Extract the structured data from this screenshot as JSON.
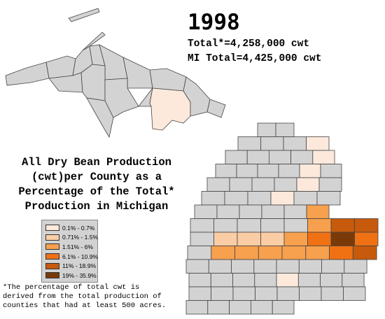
{
  "year": "1998",
  "totals": {
    "line1": "Total*=4,258,000 cwt",
    "line2": "MI Total=4,425,000 cwt"
  },
  "map_title": [
    "All Dry Bean Production",
    "(cwt)per County as a",
    "Percentage of the Total*",
    "Production in Michigan"
  ],
  "legend": [
    {
      "label": "0.1% - 0.7%",
      "color": "#fde9dc"
    },
    {
      "label": "0.71% - 1.5%",
      "color": "#fbcda5"
    },
    {
      "label": "1.51% - 6%",
      "color": "#f7a04e"
    },
    {
      "label": "6.1% - 10.9%",
      "color": "#ef7113"
    },
    {
      "label": "11% - 18.9%",
      "color": "#c75a0c"
    },
    {
      "label": "19% - 35.9%",
      "color": "#7a3a08"
    }
  ],
  "footnote": [
    "*The percentage of total cwt is",
    "derived from the total production of",
    "counties that had at least 500 acres."
  ],
  "colors": {
    "no_data": "#d3d3d3",
    "border": "#444444"
  }
}
